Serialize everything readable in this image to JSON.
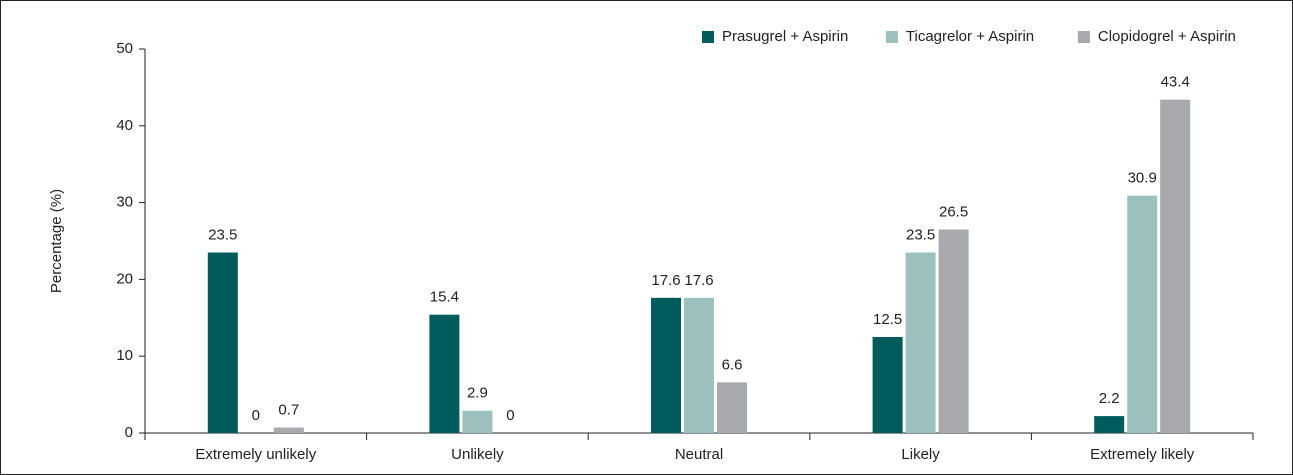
{
  "chart_data": {
    "type": "bar",
    "y_label": "Percentage (%)",
    "categories": [
      "Extremely unlikely",
      "Unlikely",
      "Neutral",
      "Likely",
      "Extremely likely"
    ],
    "series": [
      {
        "name": "Prasugrel + Aspirin",
        "color": "#005c5c",
        "values": [
          23.5,
          15.4,
          17.6,
          12.5,
          2.2
        ]
      },
      {
        "name": "Ticagrelor + Aspirin",
        "color": "#9bc0be",
        "values": [
          0,
          2.9,
          17.6,
          23.5,
          30.9
        ]
      },
      {
        "name": "Clopidogrel + Aspirin",
        "color": "#a8a9ad",
        "values": [
          0.7,
          0,
          6.6,
          26.5,
          43.4
        ]
      }
    ],
    "ylim": [
      0,
      50
    ],
    "yticks": [
      0,
      10,
      20,
      30,
      40,
      50
    ],
    "legend": "top-right"
  }
}
